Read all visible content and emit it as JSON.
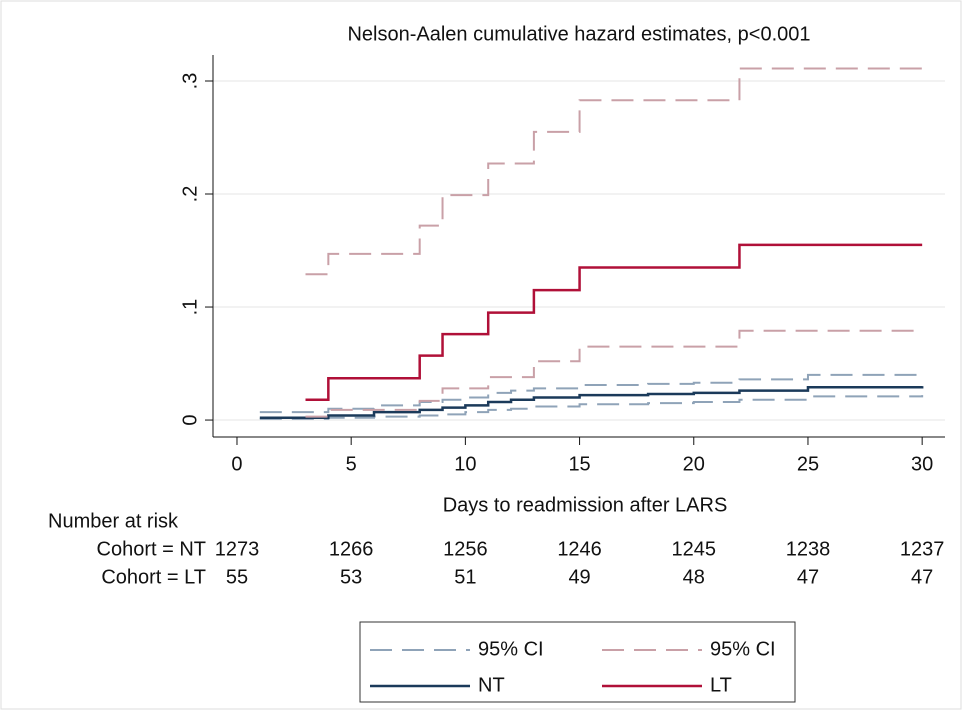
{
  "chart_data": {
    "type": "step",
    "title": "Nelson-Aalen cumulative hazard estimates, p<0.001",
    "x_label": "Days to readmission after LARS",
    "xlim": [
      -1.05,
      31
    ],
    "xticks": [
      0,
      5,
      10,
      15,
      20,
      25,
      30
    ],
    "ylim": [
      -0.015,
      0.323
    ],
    "yticks": [
      0,
      {
        "value": 0.1,
        "label": ".1"
      },
      {
        "value": 0.2,
        "label": ".2"
      },
      {
        "value": 0.3,
        "label": ".3"
      }
    ],
    "grid": true,
    "series": [
      {
        "name": "NT",
        "color": "#1b3a5a",
        "x": [
          1,
          4,
          6,
          8,
          9,
          10,
          11,
          12,
          13,
          15,
          18,
          20,
          22,
          25,
          30
        ],
        "values": [
          0.002,
          0.004,
          0.007,
          0.009,
          0.011,
          0.013,
          0.016,
          0.018,
          0.02,
          0.022,
          0.023,
          0.024,
          0.026,
          0.029,
          0.03
        ],
        "ci": {
          "name": "95% CI",
          "color": "#8fa3b8",
          "lower": [
            0.001,
            0.002,
            0.003,
            0.004,
            0.005,
            0.007,
            0.009,
            0.01,
            0.012,
            0.014,
            0.015,
            0.016,
            0.018,
            0.021,
            0.022
          ],
          "upper": [
            0.007,
            0.01,
            0.013,
            0.016,
            0.018,
            0.02,
            0.024,
            0.026,
            0.028,
            0.031,
            0.032,
            0.033,
            0.036,
            0.04,
            0.04
          ]
        }
      },
      {
        "name": "LT",
        "color": "#b01038",
        "x": [
          3,
          4,
          8,
          9,
          11,
          13,
          15,
          22,
          30
        ],
        "values": [
          0.018,
          0.037,
          0.057,
          0.076,
          0.095,
          0.115,
          0.135,
          0.155,
          0.155
        ],
        "ci": {
          "name": "95% CI",
          "color": "#c9a0a7",
          "lower": [
            0.003,
            0.009,
            0.017,
            0.028,
            0.038,
            0.052,
            0.065,
            0.079,
            0.079
          ],
          "upper": [
            0.129,
            0.147,
            0.172,
            0.199,
            0.227,
            0.255,
            0.283,
            0.311,
            0.311
          ]
        }
      }
    ],
    "risk_table": {
      "title": "Number at risk",
      "rows": [
        {
          "label": "Cohort = NT",
          "values": [
            1273,
            1266,
            1256,
            1246,
            1245,
            1238,
            1237
          ]
        },
        {
          "label": "Cohort = LT",
          "values": [
            55,
            53,
            51,
            49,
            48,
            47,
            47
          ]
        }
      ]
    }
  }
}
